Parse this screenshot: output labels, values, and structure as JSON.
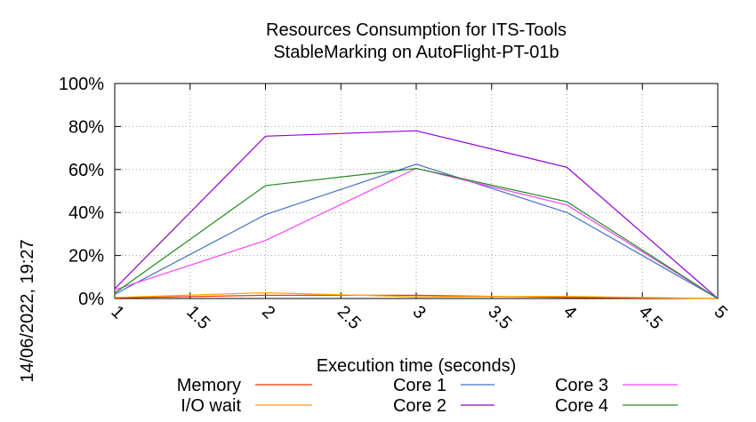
{
  "chart_data": {
    "type": "line",
    "title": [
      "Resources Consumption for ITS-Tools",
      "StableMarking on AutoFlight-PT-01b"
    ],
    "xlabel": "Execution time (seconds)",
    "ylabel": "",
    "side_label": "14/06/2022, 19:27",
    "xlim": [
      1,
      5
    ],
    "ylim": [
      0,
      100
    ],
    "x_ticks": [
      1,
      1.5,
      2,
      2.5,
      3,
      3.5,
      4,
      4.5,
      5
    ],
    "x_tick_labels": [
      "1",
      "1.5",
      "2",
      "2.5",
      "3",
      "3.5",
      "4",
      "4.5",
      "5"
    ],
    "y_ticks": [
      0,
      20,
      40,
      60,
      80,
      100
    ],
    "y_tick_labels": [
      "0%",
      "20%",
      "40%",
      "60%",
      "80%",
      "100%"
    ],
    "grid": true,
    "legend_position": "bottom",
    "x": [
      1,
      2,
      3,
      4,
      5
    ],
    "series": [
      {
        "name": "Memory",
        "color": "#ff3300",
        "values": [
          0.3,
          1.5,
          1.5,
          0.5,
          0
        ]
      },
      {
        "name": "I/O wait",
        "color": "#ffa500",
        "values": [
          0.5,
          2.7,
          0.8,
          1.0,
          0
        ]
      },
      {
        "name": "Core 1",
        "color": "#4472c4",
        "values": [
          2,
          39,
          62.5,
          40,
          0
        ]
      },
      {
        "name": "Core 2",
        "color": "#9400d3",
        "values": [
          4.5,
          75.5,
          78,
          61,
          0
        ]
      },
      {
        "name": "Core 3",
        "color": "#ff40ff",
        "values": [
          4,
          27,
          60.5,
          43.5,
          0
        ]
      },
      {
        "name": "Core 4",
        "color": "#228b22",
        "values": [
          2.5,
          52.5,
          60.5,
          45,
          0
        ]
      }
    ]
  }
}
